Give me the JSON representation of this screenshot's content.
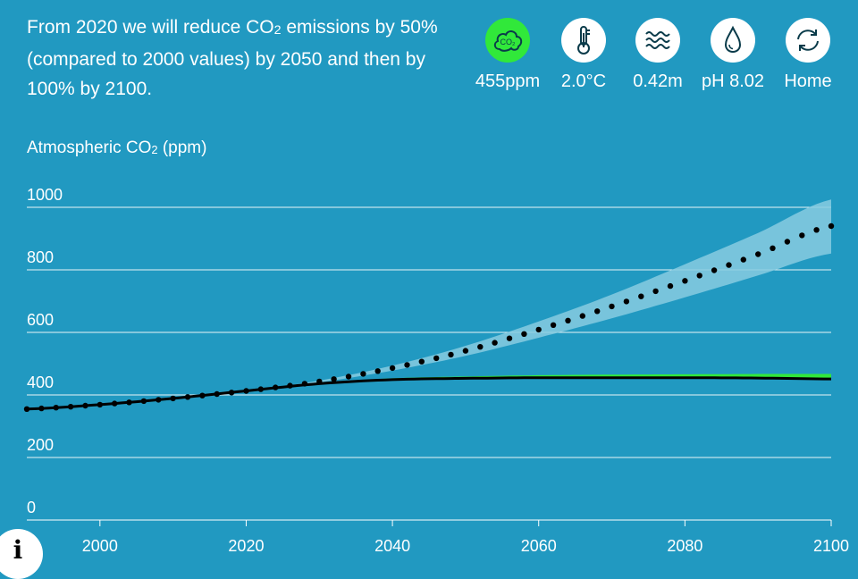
{
  "headline": {
    "line1_pre": "From 2020 we will reduce CO",
    "sub": "2",
    "line1_post": " emissions by 50% (compared to 2000 values) by 2050 and then by 100% by 2100."
  },
  "indicators": [
    {
      "icon": "co2-cloud-icon",
      "value": "455ppm",
      "active": true
    },
    {
      "icon": "thermometer-icon",
      "value": "2.0°C",
      "active": false
    },
    {
      "icon": "waves-icon",
      "value": "0.42m",
      "active": false
    },
    {
      "icon": "water-drop-icon",
      "value": "pH 8.02",
      "active": false
    },
    {
      "icon": "refresh-icon",
      "value": "Home",
      "active": false
    }
  ],
  "info_button": {
    "label": "i"
  },
  "chart_data": {
    "type": "line",
    "ylabel_pre": "Atmospheric CO",
    "ylabel_sub": "2",
    "ylabel_post": " (ppm)",
    "xlim": [
      1990,
      2100
    ],
    "ylim": [
      0,
      1000
    ],
    "yticks": [
      0,
      200,
      400,
      600,
      800,
      1000
    ],
    "xticks": [
      2000,
      2020,
      2040,
      2060,
      2080,
      2100
    ],
    "grid": true,
    "colors": {
      "background": "#2199c1",
      "band_upper": "#87cbe0",
      "band_reduced": "#31e83a",
      "line": "#000000",
      "grid": "#ffffff"
    },
    "series": [
      {
        "style": "dotted",
        "x": [
          1990,
          2000,
          2010,
          2020,
          2030,
          2040,
          2050,
          2060,
          2070,
          2080,
          2090,
          2100
        ],
        "y": [
          355,
          369,
          389,
          413,
          443,
          486,
          541,
          609,
          683,
          765,
          850,
          940
        ],
        "band_lower": [
          355,
          369,
          389,
          413,
          440,
          478,
          525,
          583,
          645,
          712,
          782,
          852
        ],
        "band_upper": [
          355,
          369,
          389,
          413,
          446,
          494,
          557,
          635,
          721,
          818,
          918,
          1025
        ]
      },
      {
        "style": "solid",
        "x": [
          1990,
          2000,
          2010,
          2020,
          2030,
          2040,
          2050,
          2060,
          2070,
          2080,
          2090,
          2100
        ],
        "y": [
          355,
          369,
          389,
          413,
          436,
          449,
          453,
          455,
          455,
          455,
          454,
          451
        ],
        "band_lower": [
          355,
          369,
          389,
          413,
          436,
          449,
          453,
          455,
          455,
          455,
          454,
          451
        ],
        "band_upper": [
          355,
          369,
          389,
          413,
          438,
          453,
          459,
          463,
          465,
          466,
          467,
          467
        ]
      }
    ]
  }
}
